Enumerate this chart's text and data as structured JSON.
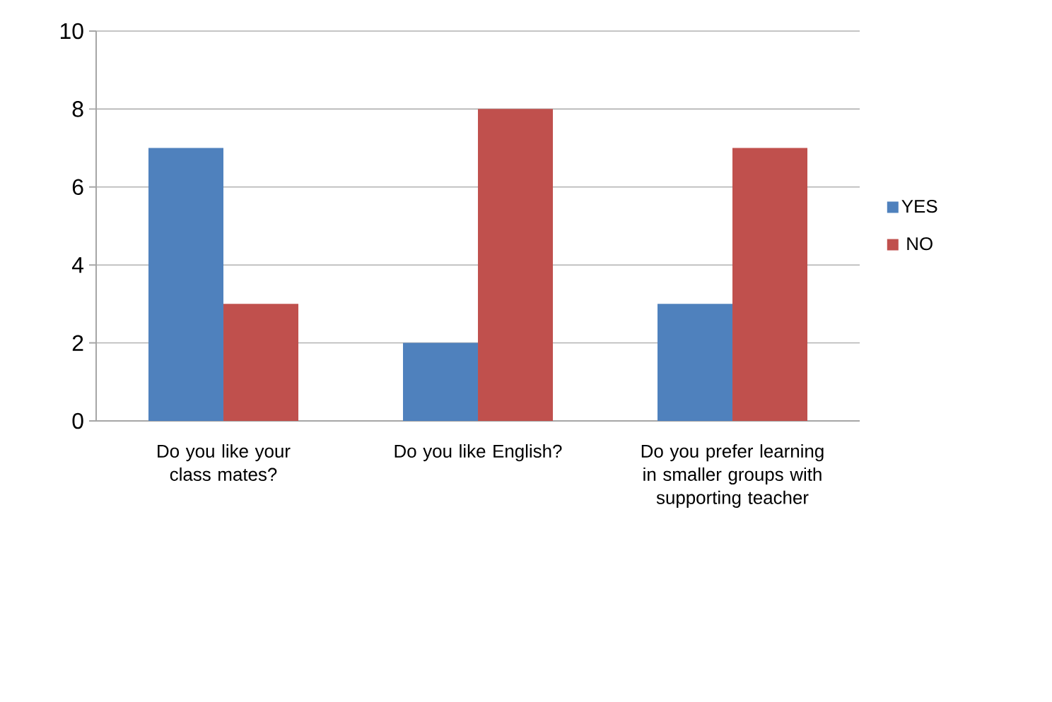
{
  "chart_data": {
    "type": "bar",
    "categories": [
      "Do you like your class mates?",
      "Do you like English?",
      "Do you prefer learning in smaller groups with supporting teacher"
    ],
    "series": [
      {
        "name": "YES",
        "color": "#4f81bd",
        "values": [
          7,
          2,
          3
        ]
      },
      {
        "name": "NO",
        "color": "#c0504d",
        "values": [
          3,
          8,
          7
        ]
      }
    ],
    "ylim": [
      0,
      10
    ],
    "yticks": [
      0,
      2,
      4,
      6,
      8,
      10
    ],
    "grid": "y",
    "legend": "right"
  }
}
